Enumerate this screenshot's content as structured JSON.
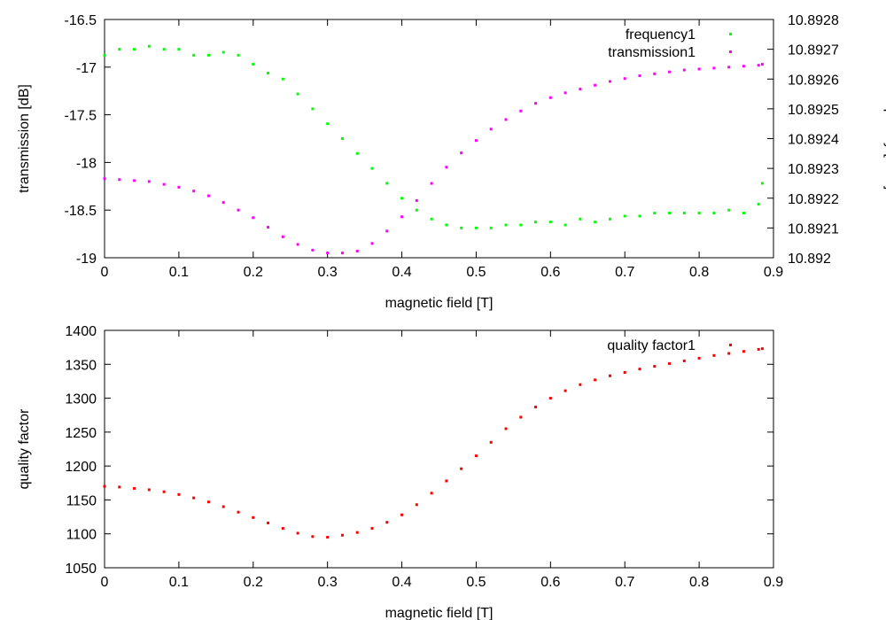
{
  "chart_data": [
    {
      "type": "scatter",
      "xlabel": "magnetic field [T]",
      "ylabel": "transmission [dB]",
      "y2label": "frequency [GHz]",
      "xlim": [
        0,
        0.9
      ],
      "ylim": [
        -19,
        -16.5
      ],
      "y2lim": [
        10.892,
        10.8928
      ],
      "xticks": [
        "0",
        "0.1",
        "0.2",
        "0.3",
        "0.4",
        "0.5",
        "0.6",
        "0.7",
        "0.8",
        "0.9"
      ],
      "yticks": [
        "-16.5",
        "-17",
        "-17.5",
        "-18",
        "-18.5",
        "-19"
      ],
      "y2ticks": [
        "10.892",
        "10.8921",
        "10.8922",
        "10.8923",
        "10.8924",
        "10.8925",
        "10.8926",
        "10.8927",
        "10.8928"
      ],
      "legend_position": "top-right",
      "grid": false,
      "series": [
        {
          "name": "frequency1",
          "axis": "right",
          "color": "#00ff00",
          "x": [
            0.0,
            0.02,
            0.04,
            0.06,
            0.08,
            0.1,
            0.12,
            0.14,
            0.16,
            0.18,
            0.2,
            0.22,
            0.24,
            0.26,
            0.28,
            0.3,
            0.32,
            0.34,
            0.36,
            0.38,
            0.4,
            0.42,
            0.44,
            0.46,
            0.48,
            0.5,
            0.52,
            0.54,
            0.56,
            0.58,
            0.6,
            0.62,
            0.64,
            0.66,
            0.68,
            0.7,
            0.72,
            0.74,
            0.76,
            0.78,
            0.8,
            0.82,
            0.84,
            0.86,
            0.88,
            0.885
          ],
          "y": [
            10.89268,
            10.8927,
            10.8927,
            10.89271,
            10.8927,
            10.8927,
            10.89268,
            10.89268,
            10.89269,
            10.89268,
            10.89265,
            10.89262,
            10.8926,
            10.89255,
            10.8925,
            10.89245,
            10.8924,
            10.89235,
            10.8923,
            10.89225,
            10.8922,
            10.89216,
            10.89213,
            10.89211,
            10.8921,
            10.8921,
            10.8921,
            10.89211,
            10.89211,
            10.89212,
            10.89212,
            10.89211,
            10.89213,
            10.89212,
            10.89213,
            10.89214,
            10.89214,
            10.89215,
            10.89215,
            10.89215,
            10.89215,
            10.89215,
            10.89216,
            10.89215,
            10.89218,
            10.89225
          ]
        },
        {
          "name": "transmission1",
          "axis": "left",
          "color": "#ff00ff",
          "x": [
            0.0,
            0.02,
            0.04,
            0.06,
            0.08,
            0.1,
            0.12,
            0.14,
            0.16,
            0.18,
            0.2,
            0.22,
            0.24,
            0.26,
            0.28,
            0.3,
            0.32,
            0.34,
            0.36,
            0.38,
            0.4,
            0.42,
            0.44,
            0.46,
            0.48,
            0.5,
            0.52,
            0.54,
            0.56,
            0.58,
            0.6,
            0.62,
            0.64,
            0.66,
            0.68,
            0.7,
            0.72,
            0.74,
            0.76,
            0.78,
            0.8,
            0.82,
            0.84,
            0.86,
            0.88,
            0.885
          ],
          "y": [
            -18.17,
            -18.18,
            -18.19,
            -18.2,
            -18.23,
            -18.26,
            -18.3,
            -18.35,
            -18.42,
            -18.5,
            -18.58,
            -18.68,
            -18.78,
            -18.86,
            -18.92,
            -18.95,
            -18.95,
            -18.93,
            -18.85,
            -18.72,
            -18.57,
            -18.4,
            -18.22,
            -18.05,
            -17.9,
            -17.77,
            -17.65,
            -17.55,
            -17.46,
            -17.38,
            -17.32,
            -17.27,
            -17.23,
            -17.19,
            -17.15,
            -17.12,
            -17.09,
            -17.07,
            -17.05,
            -17.03,
            -17.02,
            -17.01,
            -17.0,
            -16.99,
            -16.98,
            -16.97
          ]
        }
      ]
    },
    {
      "type": "scatter",
      "xlabel": "magnetic field [T]",
      "ylabel": "quality factor",
      "xlim": [
        0,
        0.9
      ],
      "ylim": [
        1050,
        1400
      ],
      "xticks": [
        "0",
        "0.1",
        "0.2",
        "0.3",
        "0.4",
        "0.5",
        "0.6",
        "0.7",
        "0.8",
        "0.9"
      ],
      "yticks": [
        "1400",
        "1350",
        "1300",
        "1250",
        "1200",
        "1150",
        "1100",
        "1050"
      ],
      "legend_position": "top-right",
      "grid": false,
      "series": [
        {
          "name": "quality factor1",
          "color": "#ff0000",
          "x": [
            0.0,
            0.02,
            0.04,
            0.06,
            0.08,
            0.1,
            0.12,
            0.14,
            0.16,
            0.18,
            0.2,
            0.22,
            0.24,
            0.26,
            0.28,
            0.3,
            0.32,
            0.34,
            0.36,
            0.38,
            0.4,
            0.42,
            0.44,
            0.46,
            0.48,
            0.5,
            0.52,
            0.54,
            0.56,
            0.58,
            0.6,
            0.62,
            0.64,
            0.66,
            0.68,
            0.7,
            0.72,
            0.74,
            0.76,
            0.78,
            0.8,
            0.82,
            0.84,
            0.86,
            0.88,
            0.885
          ],
          "y": [
            1170,
            1169,
            1167,
            1165,
            1162,
            1158,
            1153,
            1147,
            1140,
            1132,
            1124,
            1116,
            1108,
            1101,
            1096,
            1095,
            1098,
            1102,
            1108,
            1117,
            1128,
            1143,
            1160,
            1178,
            1196,
            1215,
            1235,
            1255,
            1272,
            1287,
            1300,
            1311,
            1320,
            1327,
            1333,
            1338,
            1343,
            1347,
            1351,
            1355,
            1359,
            1363,
            1366,
            1369,
            1372,
            1373
          ]
        }
      ]
    }
  ]
}
